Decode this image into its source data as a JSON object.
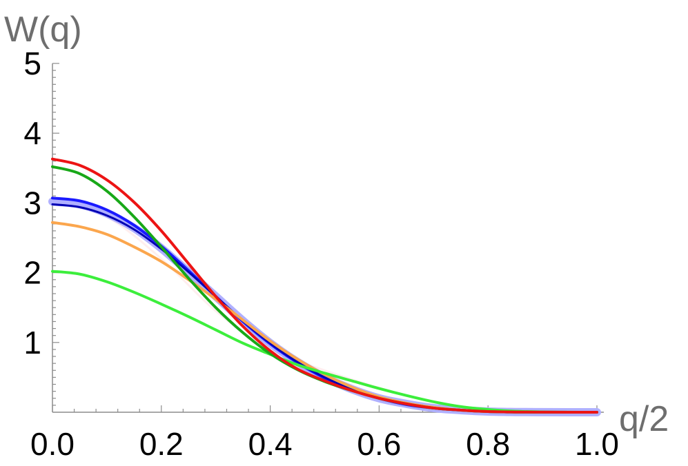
{
  "chart_data": {
    "type": "line",
    "ylabel": "W(q)",
    "xlabel": "q/2",
    "xlim": [
      0,
      1
    ],
    "ylim": [
      0,
      5
    ],
    "xticks": [
      "0.0",
      "0.2",
      "0.4",
      "0.6",
      "0.8",
      "1.0"
    ],
    "yticks": [
      "1",
      "2",
      "3",
      "4",
      "5"
    ],
    "xtick_values": [
      0,
      0.2,
      0.4,
      0.6,
      0.8,
      1.0
    ],
    "ytick_values": [
      1,
      2,
      3,
      4,
      5
    ],
    "grid": false,
    "series": [
      {
        "color": "#ffeeee",
        "width": 3,
        "x": [
          0,
          0.1,
          0.2,
          0.3,
          0.4,
          0.5,
          0.6,
          0.7,
          0.8,
          0.9,
          1.0
        ],
        "y": [
          3.05,
          2.8,
          2.2,
          1.45,
          0.9,
          0.6,
          0.35,
          0.15,
          0.04,
          0.005,
          0
        ]
      },
      {
        "color": "#b0b0ff",
        "width": 12,
        "x": [
          0,
          0.05,
          0.1,
          0.15,
          0.2,
          0.25,
          0.3,
          0.35,
          0.4,
          0.45,
          0.5,
          0.55,
          0.6,
          0.65,
          0.7,
          0.75,
          0.8,
          0.85,
          0.9,
          0.95,
          1.0
        ],
        "y": [
          3.02,
          2.98,
          2.85,
          2.64,
          2.35,
          2.01,
          1.66,
          1.31,
          0.99,
          0.72,
          0.5,
          0.33,
          0.2,
          0.12,
          0.06,
          0.03,
          0.01,
          0.003,
          0.001,
          0,
          0
        ]
      },
      {
        "color": "#1a1aff",
        "width": 4,
        "x": [
          0,
          0.05,
          0.1,
          0.15,
          0.2,
          0.25,
          0.3,
          0.35,
          0.4,
          0.45,
          0.5,
          0.55,
          0.6,
          0.65,
          0.7,
          0.75,
          0.8,
          0.85,
          0.9,
          0.95,
          1.0
        ],
        "y": [
          3.07,
          3.03,
          2.9,
          2.68,
          2.38,
          2.03,
          1.66,
          1.3,
          0.98,
          0.71,
          0.49,
          0.32,
          0.2,
          0.11,
          0.06,
          0.03,
          0.01,
          0.003,
          0.001,
          0,
          0
        ]
      },
      {
        "color": "#0000b4",
        "width": 3,
        "x": [
          0,
          0.05,
          0.1,
          0.15,
          0.2,
          0.25,
          0.3,
          0.35,
          0.4,
          0.45,
          0.5,
          0.55,
          0.6,
          0.65,
          0.7,
          0.75,
          0.8,
          0.85,
          0.9,
          0.95,
          1.0
        ],
        "y": [
          2.98,
          2.94,
          2.82,
          2.62,
          2.34,
          2.01,
          1.66,
          1.31,
          0.99,
          0.72,
          0.5,
          0.33,
          0.2,
          0.12,
          0.06,
          0.03,
          0.01,
          0.003,
          0.001,
          0,
          0
        ]
      },
      {
        "color": "#fba64d",
        "width": 4,
        "x": [
          0,
          0.05,
          0.1,
          0.15,
          0.2,
          0.25,
          0.3,
          0.35,
          0.4,
          0.45,
          0.5,
          0.55,
          0.6,
          0.65,
          0.7,
          0.75,
          0.8,
          0.85,
          0.9,
          0.95,
          1.0
        ],
        "y": [
          2.72,
          2.66,
          2.55,
          2.37,
          2.16,
          1.9,
          1.62,
          1.32,
          1.02,
          0.76,
          0.54,
          0.36,
          0.22,
          0.13,
          0.07,
          0.03,
          0.01,
          0.003,
          0.001,
          0,
          0
        ]
      },
      {
        "color": "#3cee3c",
        "width": 4,
        "x": [
          0,
          0.05,
          0.1,
          0.15,
          0.2,
          0.25,
          0.3,
          0.35,
          0.4,
          0.45,
          0.5,
          0.55,
          0.6,
          0.65,
          0.7,
          0.75,
          0.8,
          0.85,
          0.9,
          0.95,
          1.0
        ],
        "y": [
          2.02,
          1.98,
          1.87,
          1.72,
          1.55,
          1.37,
          1.18,
          0.99,
          0.83,
          0.68,
          0.56,
          0.45,
          0.34,
          0.24,
          0.15,
          0.08,
          0.04,
          0.015,
          0.004,
          0.001,
          0
        ]
      },
      {
        "color": "#18a818",
        "width": 4,
        "x": [
          0,
          0.05,
          0.1,
          0.15,
          0.2,
          0.25,
          0.3,
          0.35,
          0.4,
          0.45,
          0.5,
          0.55,
          0.6,
          0.65,
          0.7,
          0.75,
          0.8,
          0.85,
          0.9,
          0.95,
          1.0
        ],
        "y": [
          3.52,
          3.42,
          3.17,
          2.8,
          2.37,
          1.92,
          1.5,
          1.14,
          0.84,
          0.61,
          0.44,
          0.31,
          0.2,
          0.12,
          0.06,
          0.03,
          0.01,
          0.003,
          0.001,
          0,
          0
        ]
      },
      {
        "color": "#ec1414",
        "width": 4,
        "x": [
          0,
          0.05,
          0.1,
          0.15,
          0.2,
          0.25,
          0.3,
          0.35,
          0.4,
          0.45,
          0.5,
          0.55,
          0.6,
          0.65,
          0.7,
          0.75,
          0.8,
          0.85,
          0.9,
          0.95,
          1.0
        ],
        "y": [
          3.63,
          3.54,
          3.33,
          3.01,
          2.6,
          2.13,
          1.66,
          1.23,
          0.88,
          0.62,
          0.45,
          0.31,
          0.2,
          0.12,
          0.06,
          0.03,
          0.01,
          0.003,
          0.001,
          0,
          0
        ]
      }
    ]
  }
}
